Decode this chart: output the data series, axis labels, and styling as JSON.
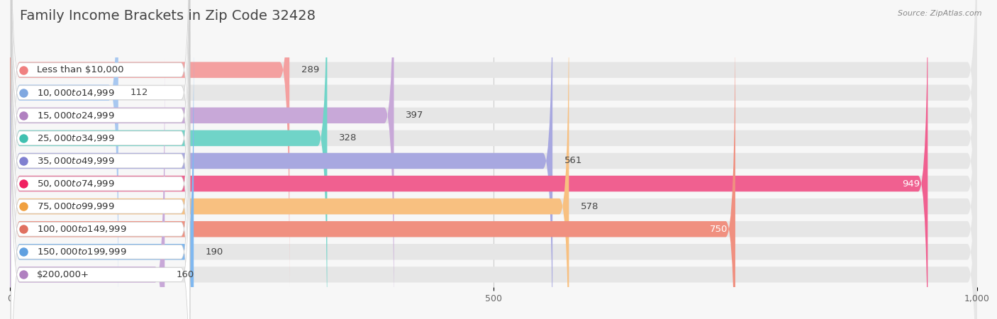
{
  "title": "Family Income Brackets in Zip Code 32428",
  "source": "Source: ZipAtlas.com",
  "categories": [
    "Less than $10,000",
    "$10,000 to $14,999",
    "$15,000 to $24,999",
    "$25,000 to $34,999",
    "$35,000 to $49,999",
    "$50,000 to $74,999",
    "$75,000 to $99,999",
    "$100,000 to $149,999",
    "$150,000 to $199,999",
    "$200,000+"
  ],
  "values": [
    289,
    112,
    397,
    328,
    561,
    949,
    578,
    750,
    190,
    160
  ],
  "bar_colors": [
    "#F4A0A0",
    "#A8C8F0",
    "#C8A8D8",
    "#70D4C8",
    "#A8A8E0",
    "#F06090",
    "#F8C080",
    "#F09080",
    "#80B8F0",
    "#C8A8D8"
  ],
  "dot_colors": [
    "#F08080",
    "#80A8E0",
    "#B080C0",
    "#40C0B0",
    "#8080D0",
    "#F02060",
    "#F0A040",
    "#E07060",
    "#60A0E0",
    "#B080C0"
  ],
  "background_color": "#f7f7f7",
  "bar_background_color": "#e6e6e6",
  "label_bg_color": "#ffffff",
  "xlim": [
    0,
    1000
  ],
  "title_fontsize": 14,
  "label_fontsize": 9.5,
  "value_fontsize": 9.5,
  "tick_fontsize": 9
}
